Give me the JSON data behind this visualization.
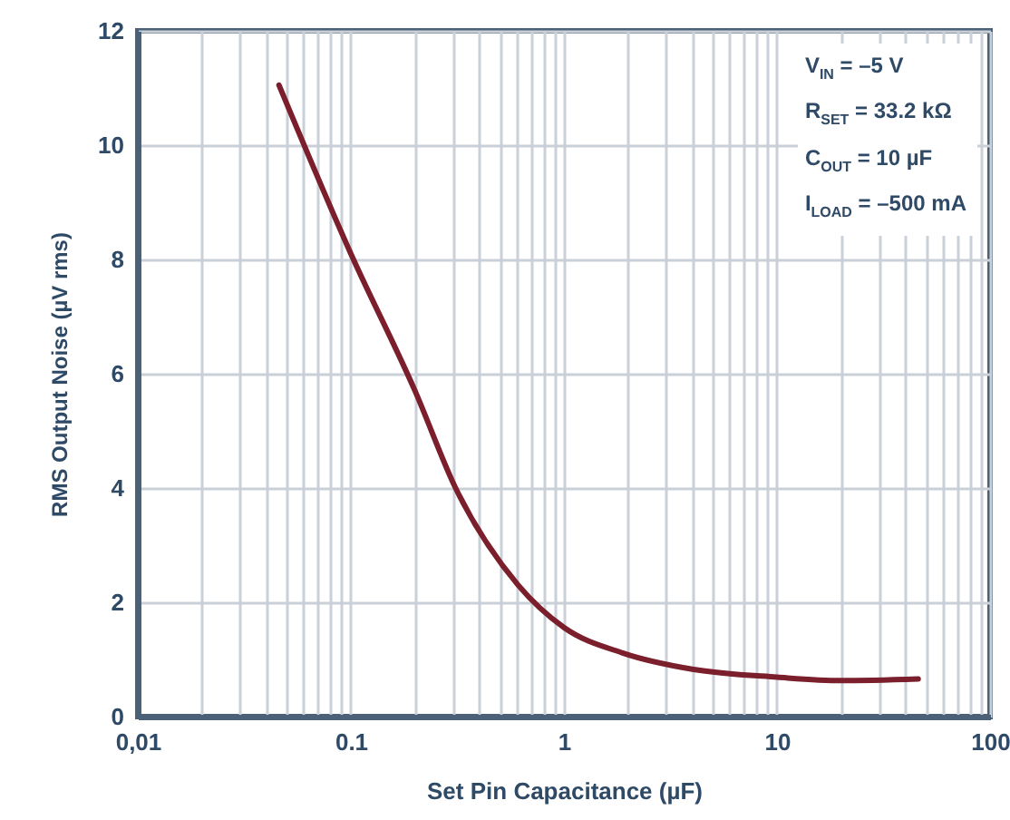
{
  "chart_data": {
    "type": "line",
    "xlabel": "Set Pin Capacitance (µF)",
    "ylabel": "RMS Output Noise (µV rms)",
    "annotations": [
      "V$_{IN}$ = –5 V",
      "R$_{SET}$ = 33.2 kΩ",
      "C$_{OUT}$ = 10 µF",
      "I$_{LOAD}$ = –500 mA"
    ],
    "log": "x",
    "grid": true,
    "xlim": [
      0.01,
      100
    ],
    "ylim": [
      0,
      12
    ],
    "xticks": [
      {
        "value": 0.01,
        "label": "0,01"
      },
      {
        "value": 0.02,
        "label": null
      },
      {
        "value": 0.03,
        "label": null
      },
      {
        "value": 0.04,
        "label": null
      },
      {
        "value": 0.05,
        "label": null
      },
      {
        "value": 0.06,
        "label": null
      },
      {
        "value": 0.07,
        "label": null
      },
      {
        "value": 0.08,
        "label": null
      },
      {
        "value": 0.09,
        "label": null
      },
      0.1,
      {
        "value": 0.2,
        "label": null
      },
      {
        "value": 0.3,
        "label": null
      },
      {
        "value": 0.4,
        "label": null
      },
      {
        "value": 0.5,
        "label": null
      },
      {
        "value": 0.6,
        "label": null
      },
      {
        "value": 0.7,
        "label": null
      },
      {
        "value": 0.8,
        "label": null
      },
      {
        "value": 0.9,
        "label": null
      },
      1,
      {
        "value": 2,
        "label": null
      },
      {
        "value": 3,
        "label": null
      },
      {
        "value": 4,
        "label": null
      },
      {
        "value": 5,
        "label": null
      },
      {
        "value": 6,
        "label": null
      },
      {
        "value": 7,
        "label": null
      },
      {
        "value": 8,
        "label": null
      },
      {
        "value": 9,
        "label": null
      },
      10,
      {
        "value": 20,
        "label": null
      },
      {
        "value": 30,
        "label": null
      },
      {
        "value": 40,
        "label": null
      },
      {
        "value": 50,
        "label": null
      },
      {
        "value": 60,
        "label": null
      },
      {
        "value": 70,
        "label": null
      },
      {
        "value": 80,
        "label": null
      },
      {
        "value": 90,
        "label": null
      },
      100
    ],
    "yticks": [
      0,
      2,
      4,
      6,
      8,
      10,
      12
    ],
    "x": [
      0.046,
      0.1,
      0.2,
      0.31,
      0.61,
      1,
      1.9,
      4,
      10,
      20,
      46
    ],
    "series": [
      {
        "color": "#7a1f2b",
        "values": [
          11.05,
          8.1,
          5.7,
          4.0,
          2.3,
          1.56,
          1.11,
          0.83,
          0.69,
          0.63,
          0.66
        ]
      }
    ]
  }
}
